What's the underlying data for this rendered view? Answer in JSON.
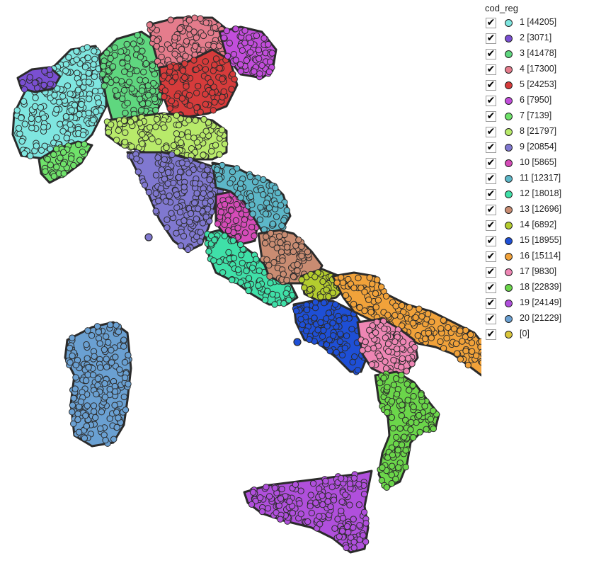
{
  "legend": {
    "title": "cod_reg",
    "checkmark": "✔",
    "items": [
      {
        "label": "1 [44205]",
        "color": "#7fe6e0"
      },
      {
        "label": "2 [3071]",
        "color": "#7a4fd2"
      },
      {
        "label": "3 [41478]",
        "color": "#5fd77f"
      },
      {
        "label": "4 [17300]",
        "color": "#e57c8c"
      },
      {
        "label": "5 [24253]",
        "color": "#d63b3b"
      },
      {
        "label": "6 [7950]",
        "color": "#c24ddb"
      },
      {
        "label": "7 [7139]",
        "color": "#6fe26a"
      },
      {
        "label": "8 [21797]",
        "color": "#b8ea6a"
      },
      {
        "label": "9 [20854]",
        "color": "#8078d0"
      },
      {
        "label": "10 [5865]",
        "color": "#d54bb8"
      },
      {
        "label": "11 [12317]",
        "color": "#5cb7c8"
      },
      {
        "label": "12 [18018]",
        "color": "#3fe0a8"
      },
      {
        "label": "13 [12696]",
        "color": "#c98c72"
      },
      {
        "label": "14 [6892]",
        "color": "#b4cc2e"
      },
      {
        "label": "15 [18955]",
        "color": "#1e4fd6"
      },
      {
        "label": "16 [15114]",
        "color": "#f1a23a"
      },
      {
        "label": "17 [9830]",
        "color": "#ee86b4"
      },
      {
        "label": "18 [22839]",
        "color": "#6bd64a"
      },
      {
        "label": "19 [24149]",
        "color": "#b04fdc"
      },
      {
        "label": "20 [21229]",
        "color": "#6aa0d2"
      },
      {
        "label": " [0]",
        "color": "#d9c53a"
      }
    ]
  },
  "map": {
    "outline_color": "#2b2b2b"
  }
}
